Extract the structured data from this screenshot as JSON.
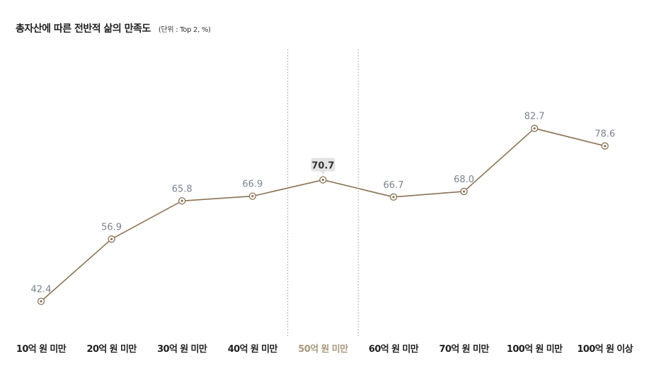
{
  "chart_data": {
    "type": "line",
    "title": "총자산에 따른 전반적 삶의 만족도",
    "subtitle": "(단위 : Top 2, %)",
    "categories": [
      "10억 원 미만",
      "20억 원 미만",
      "30억 원 미만",
      "40억 원 미만",
      "50억 원 미만",
      "60억 원 미만",
      "70억 원 미만",
      "100억 원 미만",
      "100억 원 이상"
    ],
    "series": [
      {
        "values": [
          42.4,
          56.9,
          65.8,
          66.9,
          70.7,
          66.7,
          68.0,
          82.7,
          78.6
        ]
      }
    ],
    "value_labels": [
      "42.4",
      "56.9",
      "65.8",
      "66.9",
      "70.7",
      "66.7",
      "68.0",
      "82.7",
      "78.6"
    ],
    "highlight_index": 4,
    "ylim": [
      25,
      95
    ],
    "grid": false,
    "legend": "none",
    "colors": {
      "line": "#8b7355",
      "marker_fill": "#ffffff",
      "marker_stroke": "#8b7355",
      "highlight_band_lines": "#9a9a9a",
      "highlight_badge": "#e3e3e3",
      "highlight_category_text": "#a8997f"
    }
  }
}
